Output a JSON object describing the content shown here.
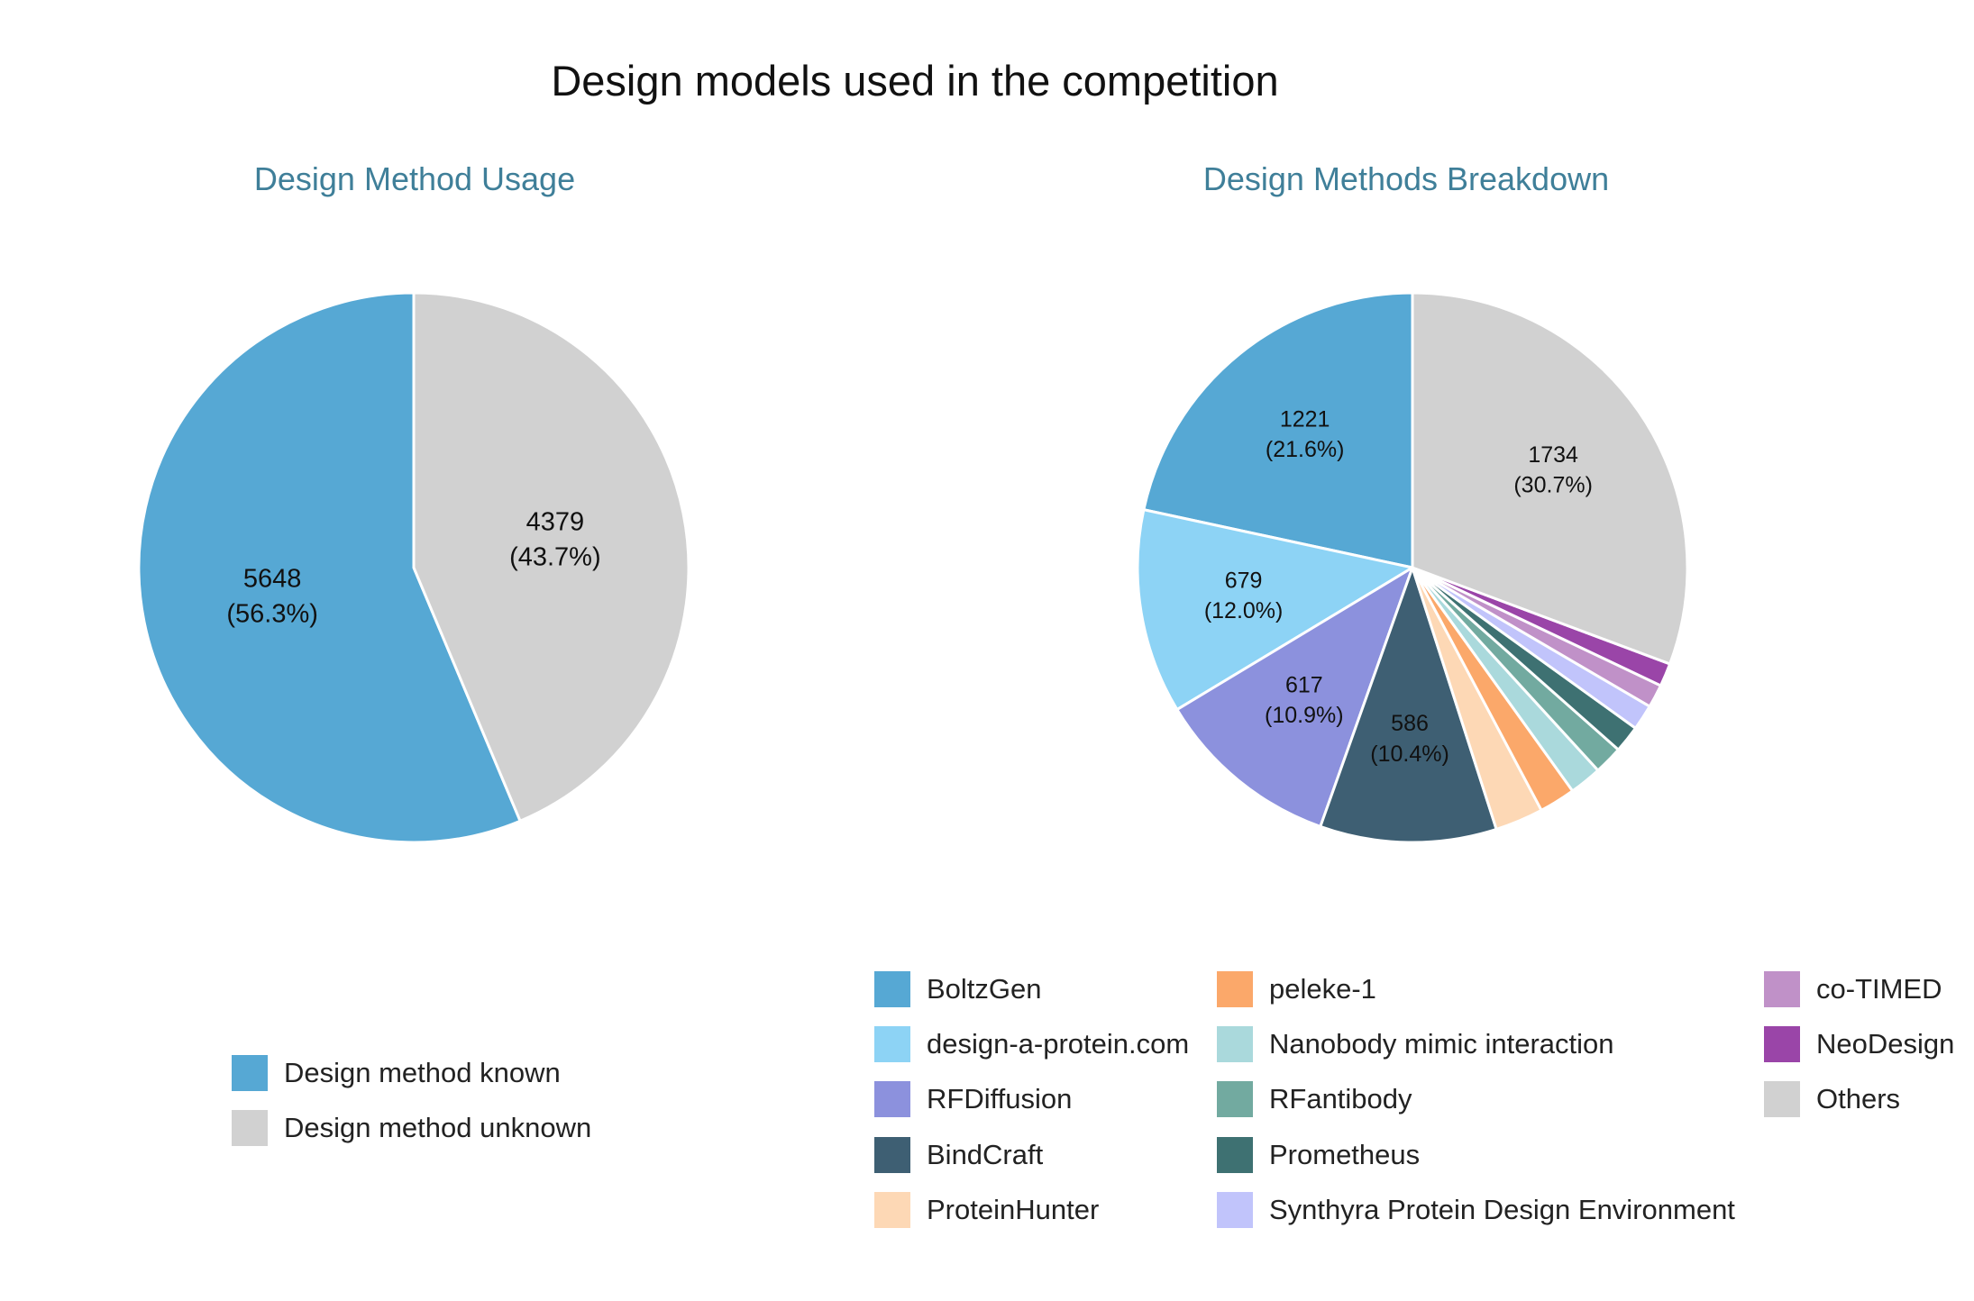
{
  "title": "Design models used in the competition",
  "chart_data": [
    {
      "type": "pie",
      "title": "Design Method Usage",
      "legend_position": "bottom",
      "slices": [
        {
          "label": "Design method known",
          "value": 5648,
          "percent": "56.3%",
          "color": "#56a8d4"
        },
        {
          "label": "Design method unknown",
          "value": 4379,
          "percent": "43.7%",
          "color": "#d1d1d1"
        }
      ]
    },
    {
      "type": "pie",
      "title": "Design Methods Breakdown",
      "legend_position": "bottom",
      "slices": [
        {
          "label": "BoltzGen",
          "value": 1221,
          "percent": "21.6%",
          "color": "#56a8d4",
          "show_label": true
        },
        {
          "label": "design-a-protein.com",
          "value": 679,
          "percent": "12.0%",
          "color": "#8dd3f5",
          "show_label": true
        },
        {
          "label": "RFDiffusion",
          "value": 617,
          "percent": "10.9%",
          "color": "#8c91dd",
          "show_label": true
        },
        {
          "label": "BindCraft",
          "value": 586,
          "percent": "10.4%",
          "color": "#3e5f73",
          "show_label": true
        },
        {
          "label": "ProteinHunter",
          "value": 160,
          "percent": "",
          "color": "#fdd8b5",
          "show_label": false
        },
        {
          "label": "peleke-1",
          "value": 120,
          "percent": "",
          "color": "#fba86a",
          "show_label": false
        },
        {
          "label": "Nanobody mimic interaction",
          "value": 107,
          "percent": "",
          "color": "#aad9dc",
          "show_label": false
        },
        {
          "label": "RFantibody",
          "value": 95,
          "percent": "",
          "color": "#72aaa0",
          "show_label": false
        },
        {
          "label": "Prometheus",
          "value": 90,
          "percent": "",
          "color": "#3e7172",
          "show_label": false
        },
        {
          "label": "Synthyra Protein Design Environment",
          "value": 85,
          "percent": "",
          "color": "#c1c4fb",
          "show_label": false
        },
        {
          "label": "co-TIMED",
          "value": 77,
          "percent": "",
          "color": "#c091c8",
          "show_label": false
        },
        {
          "label": "NeoDesign",
          "value": 77,
          "percent": "",
          "color": "#9a45a8",
          "show_label": false
        },
        {
          "label": "Others",
          "value": 1734,
          "percent": "30.7%",
          "color": "#d1d1d1",
          "show_label": true
        }
      ]
    }
  ]
}
